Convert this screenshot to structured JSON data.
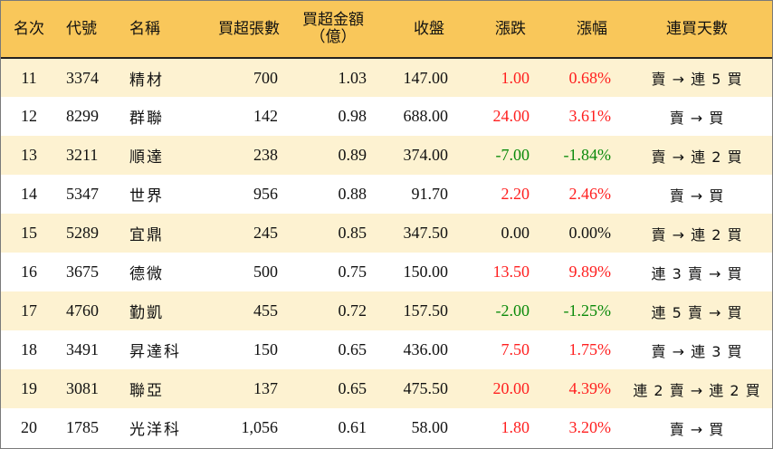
{
  "header": {
    "rank": "名次",
    "code": "代號",
    "name": "名稱",
    "net_buy_lots": "買超張數",
    "net_buy_amount_line1": "買超金額",
    "net_buy_amount_line2": "（億）",
    "close": "收盤",
    "change": "漲跌",
    "change_pct": "漲幅",
    "consecutive_days": "連買天數"
  },
  "colors": {
    "header_bg": "#f9c75a",
    "stripe_bg": "#fdf2d1",
    "up": "#ff1f1f",
    "down": "#0a8a0a"
  },
  "rows": [
    {
      "rank": "11",
      "code": "3374",
      "name": "精材",
      "lots": "700",
      "amount": "1.03",
      "close": "147.00",
      "change": "1.00",
      "pct": "0.68%",
      "dir": "up",
      "days": "賣 → 連 5 買"
    },
    {
      "rank": "12",
      "code": "8299",
      "name": "群聯",
      "lots": "142",
      "amount": "0.98",
      "close": "688.00",
      "change": "24.00",
      "pct": "3.61%",
      "dir": "up",
      "days": "賣 → 買"
    },
    {
      "rank": "13",
      "code": "3211",
      "name": "順達",
      "lots": "238",
      "amount": "0.89",
      "close": "374.00",
      "change": "-7.00",
      "pct": "-1.84%",
      "dir": "down",
      "days": "賣 → 連 2 買"
    },
    {
      "rank": "14",
      "code": "5347",
      "name": "世界",
      "lots": "956",
      "amount": "0.88",
      "close": "91.70",
      "change": "2.20",
      "pct": "2.46%",
      "dir": "up",
      "days": "賣 → 買"
    },
    {
      "rank": "15",
      "code": "5289",
      "name": "宜鼎",
      "lots": "245",
      "amount": "0.85",
      "close": "347.50",
      "change": "0.00",
      "pct": "0.00%",
      "dir": "flat",
      "days": "賣 → 連 2 買"
    },
    {
      "rank": "16",
      "code": "3675",
      "name": "德微",
      "lots": "500",
      "amount": "0.75",
      "close": "150.00",
      "change": "13.50",
      "pct": "9.89%",
      "dir": "up",
      "days": "連 3 賣 → 買"
    },
    {
      "rank": "17",
      "code": "4760",
      "name": "勤凱",
      "lots": "455",
      "amount": "0.72",
      "close": "157.50",
      "change": "-2.00",
      "pct": "-1.25%",
      "dir": "down",
      "days": "連 5 賣 → 買"
    },
    {
      "rank": "18",
      "code": "3491",
      "name": "昇達科",
      "lots": "150",
      "amount": "0.65",
      "close": "436.00",
      "change": "7.50",
      "pct": "1.75%",
      "dir": "up",
      "days": "賣 → 連 3 買"
    },
    {
      "rank": "19",
      "code": "3081",
      "name": "聯亞",
      "lots": "137",
      "amount": "0.65",
      "close": "475.50",
      "change": "20.00",
      "pct": "4.39%",
      "dir": "up",
      "days": "連 2 賣 → 連 2 買"
    },
    {
      "rank": "20",
      "code": "1785",
      "name": "光洋科",
      "lots": "1,056",
      "amount": "0.61",
      "close": "58.00",
      "change": "1.80",
      "pct": "3.20%",
      "dir": "up",
      "days": "賣 → 買"
    }
  ]
}
